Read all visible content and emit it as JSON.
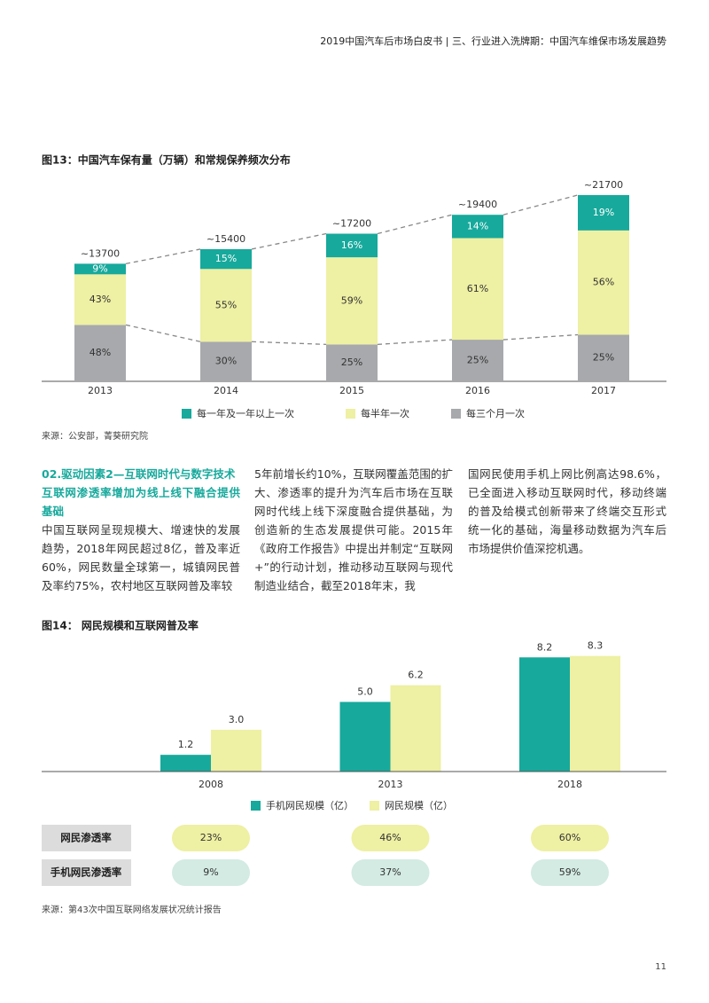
{
  "header": "2019中国汽车后市场白皮书 | 三、行业进入洗牌期：中国汽车维保市场发展趋势",
  "chart_data": [
    {
      "type": "stacked_bar",
      "title": "图13：中国汽车保有量（万辆）和常规保养频次分布",
      "categories": [
        "2013",
        "2014",
        "2015",
        "2016",
        "2017"
      ],
      "totals": {
        "values": [
          13700,
          15400,
          17200,
          19400,
          21700
        ],
        "value_labels": [
          "~13700",
          "~15400",
          "~17200",
          "~19400",
          "~21700"
        ]
      },
      "series": [
        {
          "name": "每一年及一年以上一次",
          "color": "#17a99c",
          "values": [
            9,
            15,
            16,
            14,
            19
          ],
          "value_labels": [
            "9%",
            "15%",
            "16%",
            "14%",
            "19%"
          ]
        },
        {
          "name": "每半年一次",
          "color": "#eef0a3",
          "values": [
            43,
            55,
            59,
            61,
            56
          ],
          "value_labels": [
            "43%",
            "55%",
            "59%",
            "61%",
            "56%"
          ]
        },
        {
          "name": "每三个月一次",
          "color": "#a7a9ac",
          "values": [
            48,
            30,
            25,
            25,
            25
          ],
          "value_labels": [
            "48%",
            "30%",
            "25%",
            "25%",
            "25%"
          ]
        }
      ],
      "source": "来源：公安部，菁葵研究院"
    },
    {
      "type": "grouped_bar",
      "title": "图14： 网民规模和互联网普及率",
      "categories": [
        "2008",
        "2013",
        "2018"
      ],
      "series": [
        {
          "name": "手机网民规模（亿）",
          "color": "#17a99c",
          "values": [
            1.2,
            5.0,
            8.2
          ],
          "value_labels": [
            "1.2",
            "5.0",
            "8.2"
          ]
        },
        {
          "name": "网民规模（亿）",
          "color": "#eef0a3",
          "values": [
            3.0,
            6.2,
            8.3
          ],
          "value_labels": [
            "3.0",
            "6.2",
            "8.3"
          ]
        }
      ],
      "source": "来源：第43次中国互联网络发展状况统计报告"
    }
  ],
  "table": {
    "rows": [
      [
        "网民渗透率",
        "23%",
        "46%",
        "60%"
      ],
      [
        "手机网民渗透率",
        "9%",
        "37%",
        "59%"
      ]
    ]
  },
  "body": {
    "heading": "02.驱动因素2—互联网时代与数字技术",
    "subheading": "互联网渗透率增加为线上线下融合提供基础",
    "columns": [
      "中国互联网呈现规模大、增速快的发展趋势，2018年网民超过8亿，普及率近60%，网民数量全球第一，城镇网民普及率约75%，农村地区互联网普及率较",
      "5年前增长约10%，互联网覆盖范围的扩大、渗透率的提升为汽车后市场在互联网时代线上线下深度融合提供基础，为创造新的生态发展提供可能。2015年《政府工作报告》中提出并制定“互联网+”的行动计划，推动移动互联网与现代制造业结合，截至2018年末，我",
      "国网民使用手机上网比例高达98.6%，已全面进入移动互联网时代，移动终端的普及给模式创新带来了终端交互形式统一化的基础，海量移动数据为汽车后市场提供价值深挖机遇。"
    ]
  },
  "page_number": "11"
}
